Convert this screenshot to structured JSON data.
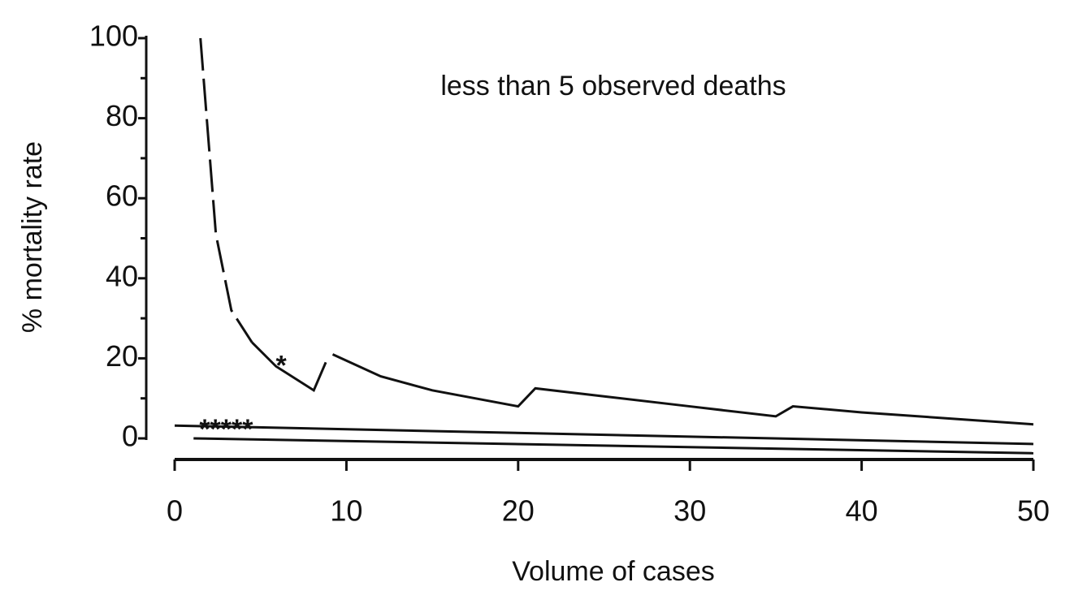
{
  "chart_data": {
    "type": "line",
    "annotation": "less than 5 observed deaths",
    "xlabel": "Volume of cases",
    "ylabel": "% mortality rate",
    "xlim": [
      0,
      50
    ],
    "xticks": [
      0,
      10,
      20,
      30,
      40,
      50
    ],
    "ylim": [
      0,
      100
    ],
    "yticks": [
      0,
      20,
      40,
      60,
      80,
      100
    ],
    "yminor_ticks": [
      10,
      30,
      50,
      70,
      90
    ],
    "color": "#111111",
    "series": [
      {
        "style": "dashed",
        "x": [
          1.5,
          2.4,
          3.3,
          4.5
        ],
        "values": [
          100,
          51,
          32,
          24
        ]
      },
      {
        "style": "solid",
        "x": [
          4.5,
          5.9,
          8.1,
          8.8,
          null,
          9.2,
          12,
          15,
          20,
          21,
          25,
          30,
          35,
          36,
          40,
          45,
          50
        ],
        "values": [
          24,
          18,
          12,
          19,
          null,
          21,
          15.5,
          12,
          8,
          12.5,
          10.5,
          8,
          5.5,
          8,
          6.5,
          5,
          3.5
        ]
      },
      {
        "style": "solid",
        "x": [
          0,
          50
        ],
        "values": [
          3.2,
          -1.4
        ]
      },
      {
        "style": "solid",
        "x": [
          1.1,
          50
        ],
        "values": [
          0,
          -3.7
        ]
      }
    ],
    "markers": [
      {
        "text": "*****",
        "x": 3,
        "y": 3
      },
      {
        "text": "*",
        "x": 6.2,
        "y": 19
      }
    ]
  }
}
